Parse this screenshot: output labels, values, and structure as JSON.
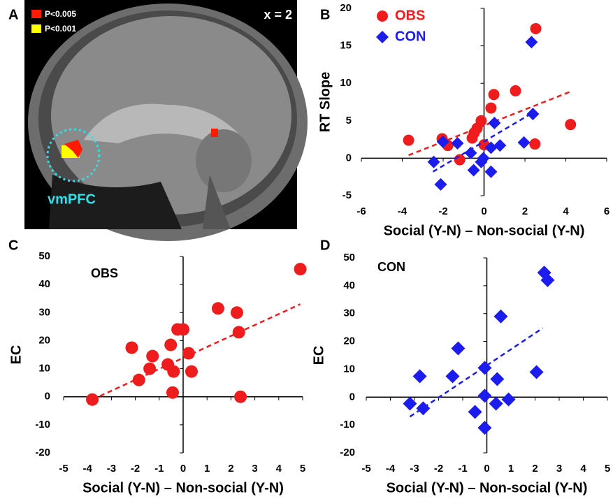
{
  "panel_a": {
    "label": "A",
    "legend": [
      {
        "label": "P<0.005",
        "color": "#ff1a00"
      },
      {
        "label": "P<0.001",
        "color": "#ffff00"
      }
    ],
    "slice": "x = 2",
    "region": "vmPFC"
  },
  "chart_data": [
    {
      "type": "scatter",
      "panel_label": "B",
      "xlabel": "Social (Y-N) – Non-social (Y-N)",
      "ylabel": "RT Slope",
      "xlim": [
        -6,
        6
      ],
      "ylim": [
        -5,
        20
      ],
      "xticks": [
        -6,
        -4,
        -2,
        0,
        2,
        4,
        6
      ],
      "yticks": [
        -5,
        0,
        5,
        10,
        15,
        20
      ],
      "legend": "top-left",
      "series": [
        {
          "name": "OBS",
          "color": "#ee1c1c",
          "marker": "circle",
          "x": [
            2.53,
            0.48,
            1.54,
            0.34,
            -0.14,
            -0.34,
            -0.48,
            -0.58,
            4.23,
            -3.69,
            -2.05,
            -1.77,
            0,
            2.49,
            -1.19
          ],
          "y": [
            17.3,
            8.5,
            9.0,
            6.7,
            5.0,
            4.0,
            3.4,
            2.7,
            4.5,
            2.4,
            2.6,
            1.7,
            1.8,
            1.9,
            -0.2
          ],
          "trend_x": [
            -3.69,
            4.33
          ],
          "trend_y": [
            0.4,
            9.0
          ]
        },
        {
          "name": "CON",
          "color": "#1c1cee",
          "marker": "diamond",
          "x": [
            2.32,
            0.51,
            2.39,
            -2.01,
            -1.3,
            1.95,
            0.78,
            0.34,
            -0.65,
            -0.14,
            -0.03,
            -2.46,
            -0.51,
            0.34,
            -2.12
          ],
          "y": [
            15.5,
            4.7,
            5.9,
            2.2,
            2.0,
            2.1,
            1.7,
            1.4,
            0.7,
            -0.5,
            0,
            -0.5,
            -1.6,
            -1.8,
            -3.5
          ],
          "trend_x": [
            -2.5,
            2.46
          ],
          "trend_y": [
            -1.8,
            6.2
          ]
        }
      ]
    },
    {
      "type": "scatter",
      "panel_label": "C",
      "annotation": "OBS",
      "xlabel": "Social (Y-N) – Non-social (Y-N)",
      "ylabel": "EC",
      "xlim": [
        -5,
        5
      ],
      "ylim": [
        -20,
        50
      ],
      "xticks": [
        -5,
        -4,
        -3,
        -2,
        -1,
        0,
        1,
        2,
        3,
        4,
        5
      ],
      "yticks": [
        -20,
        -10,
        0,
        10,
        20,
        30,
        40,
        50
      ],
      "series": [
        {
          "color": "#ee1c1c",
          "marker": "circle",
          "x": [
            -3.8,
            -2.15,
            -1.85,
            -1.28,
            -1.4,
            -0.64,
            -0.52,
            -0.4,
            -0.44,
            -0.23,
            0,
            0.23,
            0.35,
            1.46,
            2.25,
            2.33,
            2.4,
            4.9
          ],
          "y": [
            -1,
            17.5,
            6,
            14.5,
            10,
            11.5,
            18.5,
            9,
            1.5,
            24,
            24,
            15.5,
            9,
            31.5,
            30,
            23,
            0,
            45.5
          ],
          "trend_x": [
            -3.8,
            4.9
          ],
          "trend_y": [
            -1,
            33
          ]
        }
      ]
    },
    {
      "type": "scatter",
      "panel_label": "D",
      "annotation": "CON",
      "xlabel": "Social (Y-N) – Non-social (Y-N)",
      "ylabel": "EC",
      "xlim": [
        -5,
        5
      ],
      "ylim": [
        -20,
        50
      ],
      "xticks": [
        -5,
        -4,
        -3,
        -2,
        -1,
        0,
        1,
        2,
        3,
        4,
        5
      ],
      "yticks": [
        -20,
        -10,
        0,
        10,
        20,
        30,
        40,
        50
      ],
      "series": [
        {
          "color": "#1c1cee",
          "marker": "diamond",
          "x": [
            2.38,
            2.52,
            0.58,
            -1.19,
            -2.78,
            -1.42,
            -0.09,
            0.43,
            2.06,
            -3.19,
            -2.64,
            -0.49,
            -0.09,
            0.38,
            0.9,
            -0.09
          ],
          "y": [
            44.7,
            42,
            29,
            17.5,
            7.5,
            7.5,
            10.5,
            6.5,
            9,
            -2.3,
            -4,
            -5.3,
            0.5,
            -2.3,
            -0.8,
            -11
          ],
          "trend_x": [
            -3.19,
            2.32
          ],
          "trend_y": [
            -7,
            24.8
          ]
        }
      ]
    }
  ]
}
